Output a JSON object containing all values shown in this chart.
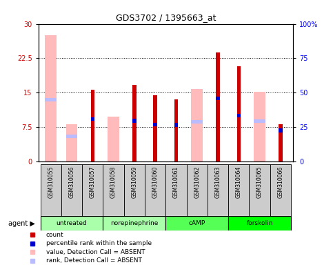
{
  "title": "GDS3702 / 1395663_at",
  "samples": [
    "GSM310055",
    "GSM310056",
    "GSM310057",
    "GSM310058",
    "GSM310059",
    "GSM310060",
    "GSM310061",
    "GSM310062",
    "GSM310063",
    "GSM310064",
    "GSM310065",
    "GSM310066"
  ],
  "groups": [
    {
      "name": "untreated",
      "color": "#aaffaa",
      "indices": [
        0,
        1,
        2
      ]
    },
    {
      "name": "norepinephrine",
      "color": "#aaffaa",
      "indices": [
        3,
        4,
        5
      ]
    },
    {
      "name": "cAMP",
      "color": "#55ff55",
      "indices": [
        6,
        7,
        8
      ]
    },
    {
      "name": "forskolin",
      "color": "#00ff00",
      "indices": [
        9,
        10,
        11
      ]
    }
  ],
  "red_bars": [
    null,
    null,
    15.7,
    null,
    16.7,
    14.4,
    13.6,
    null,
    23.7,
    20.8,
    null,
    8.2
  ],
  "pink_bars": [
    27.5,
    8.2,
    null,
    9.8,
    null,
    null,
    null,
    15.8,
    null,
    null,
    15.2,
    null
  ],
  "blue_squares": [
    null,
    null,
    9.3,
    null,
    8.9,
    8.1,
    8.0,
    null,
    13.8,
    10.0,
    null,
    6.8
  ],
  "lightblue_sq": [
    13.5,
    5.5,
    null,
    null,
    null,
    null,
    null,
    8.7,
    null,
    null,
    8.8,
    null
  ],
  "ylim_left": [
    0,
    30
  ],
  "ylim_right": [
    0,
    100
  ],
  "yticks_left": [
    0,
    7.5,
    15,
    22.5,
    30
  ],
  "yticks_right": [
    0,
    25,
    50,
    75,
    100
  ],
  "ytick_labels_left": [
    "0",
    "7.5",
    "15",
    "22.5",
    "30"
  ],
  "ytick_labels_right": [
    "0",
    "25",
    "50",
    "75",
    "100%"
  ],
  "red_color": "#cc0000",
  "pink_color": "#ffbbbb",
  "blue_color": "#0000cc",
  "lightblue_color": "#bbbbff",
  "gray_color": "#cccccc"
}
